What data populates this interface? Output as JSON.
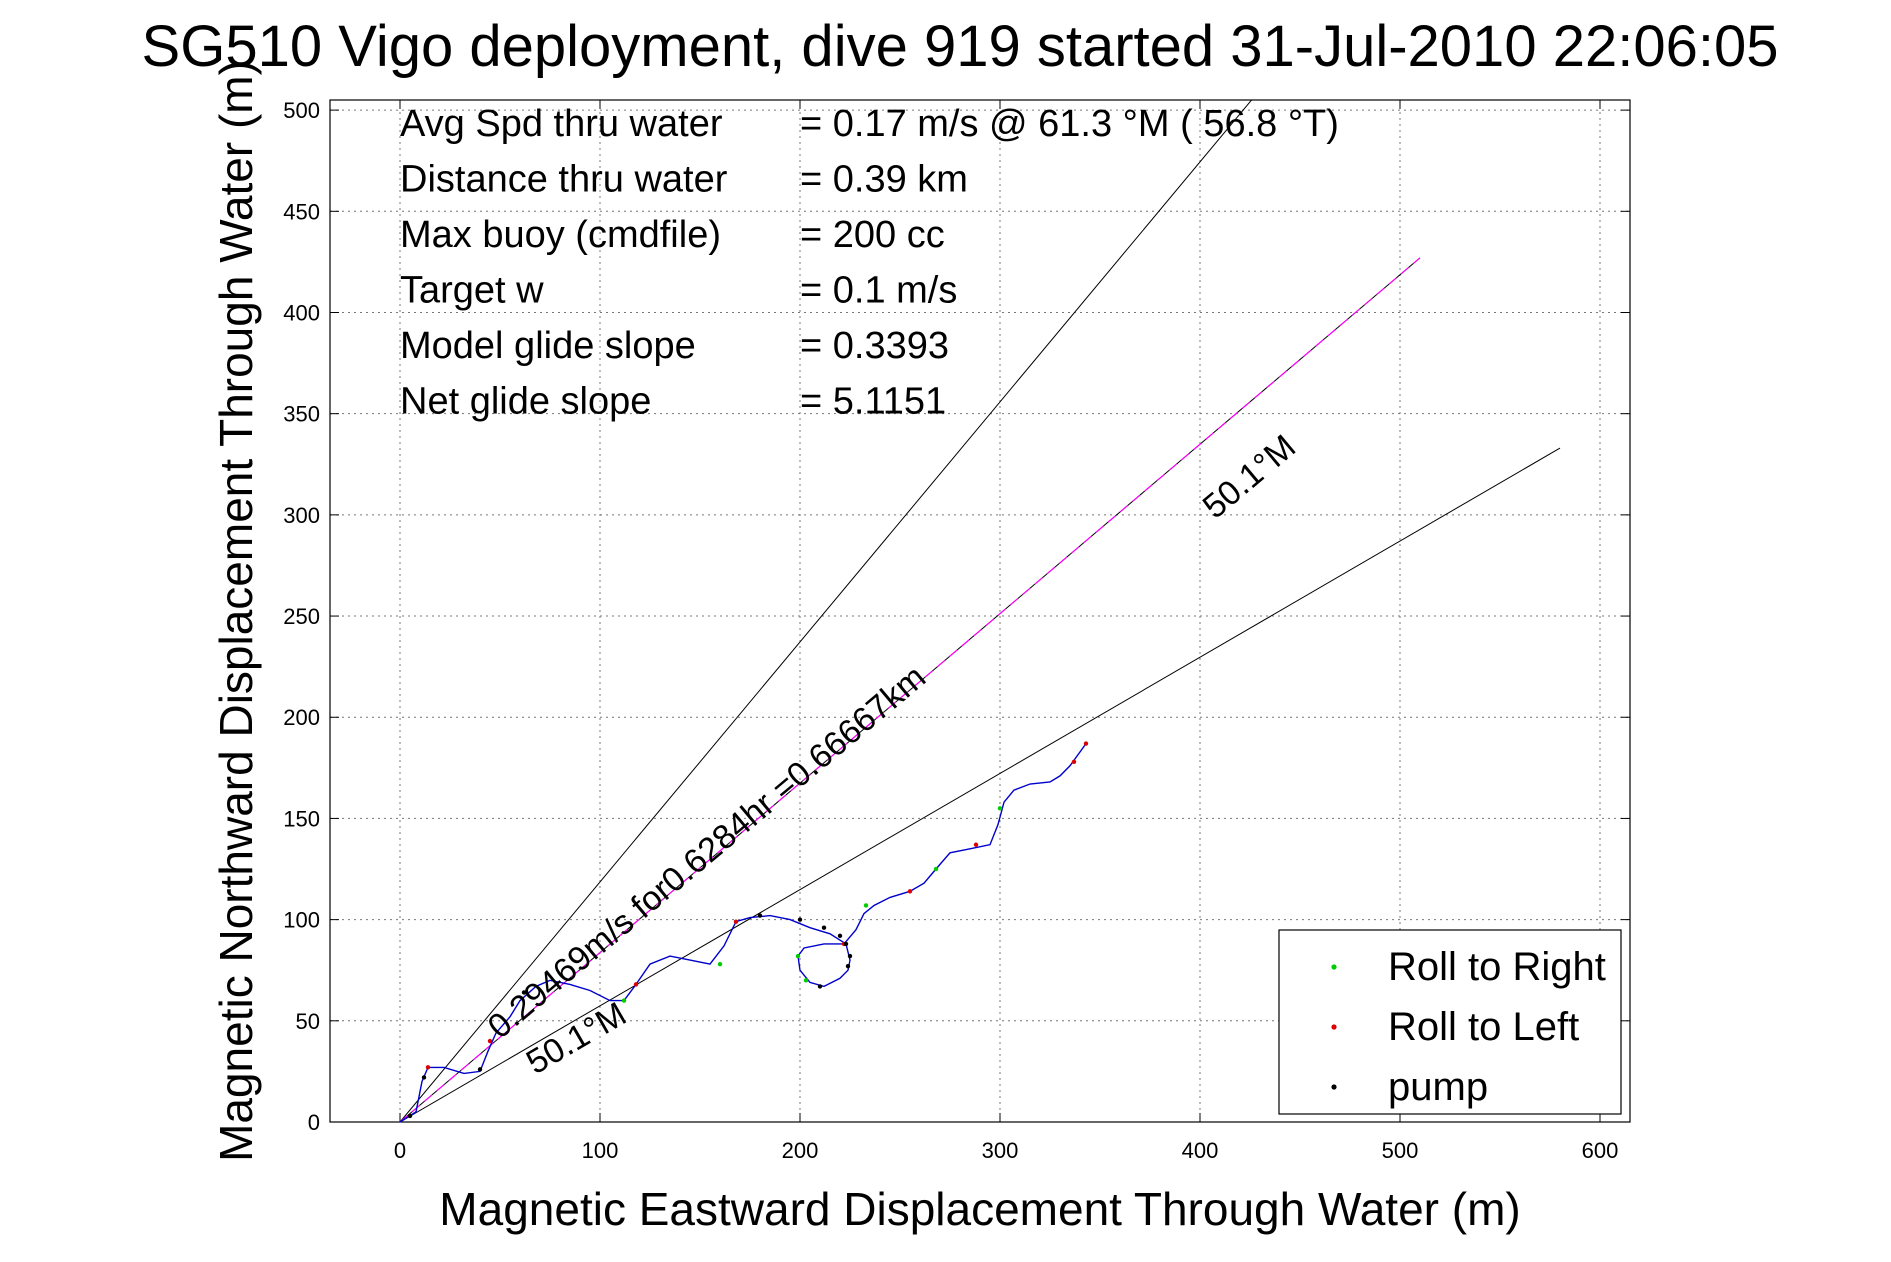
{
  "chart_data": {
    "type": "line",
    "title": "SG510 Vigo deployment, dive 919 started 31-Jul-2010 22:06:05",
    "xlabel": "Magnetic Eastward Displacement Through Water (m)",
    "ylabel": "Magnetic Northward Displacement Through Water (m)",
    "xlim": [
      -35,
      615
    ],
    "ylim": [
      0,
      505
    ],
    "xticks": [
      0,
      100,
      200,
      300,
      400,
      500,
      600
    ],
    "yticks": [
      0,
      50,
      100,
      150,
      200,
      250,
      300,
      350,
      400,
      450,
      500
    ],
    "grid": true,
    "info": [
      {
        "label": "Avg Spd thru water",
        "value": "=  0.17 m/s @  61.3 °M ( 56.8 °T)"
      },
      {
        "label": "Distance thru water",
        "value": "=  0.39 km"
      },
      {
        "label": "Max buoy (cmdfile)",
        "value": "= 200 cc"
      },
      {
        "label": "Target w",
        "value": "= 0.1 m/s"
      },
      {
        "label": "Model glide slope",
        "value": "= 0.3393"
      },
      {
        "label": "Net glide slope",
        "value": "= 5.1151"
      }
    ],
    "annotations": {
      "upper_heading": "50.1°M",
      "lower_heading": "50.1°M",
      "along_line": "0.29469m/s for0.6284hr =0.66667km"
    },
    "ref_lines": [
      {
        "from": [
          0,
          0
        ],
        "to": [
          430,
          510
        ]
      },
      {
        "from": [
          0,
          0
        ],
        "to": [
          510,
          427
        ]
      },
      {
        "from": [
          0,
          0
        ],
        "to": [
          580,
          333
        ]
      }
    ],
    "track": {
      "x": [
        0,
        8,
        11,
        14,
        22,
        32,
        40,
        44,
        48,
        55,
        60,
        68,
        75,
        85,
        95,
        105,
        112,
        118,
        125,
        135,
        145,
        155,
        162,
        168,
        175,
        185,
        195,
        205,
        215,
        223,
        225,
        224,
        220,
        212,
        205,
        200,
        199,
        202,
        212,
        222,
        228,
        232,
        237,
        245,
        255,
        262,
        268,
        275,
        285,
        295,
        299,
        302,
        307,
        315,
        325,
        330,
        335,
        343
      ],
      "y": [
        0,
        5,
        20,
        27,
        27,
        24,
        25,
        35,
        44,
        52,
        60,
        67,
        70,
        68,
        65,
        60,
        60,
        68,
        78,
        82,
        80,
        78,
        87,
        99,
        101,
        102,
        100,
        96,
        93,
        88,
        80,
        75,
        71,
        67,
        69,
        75,
        82,
        86,
        88,
        88,
        95,
        103,
        107,
        111,
        114,
        118,
        125,
        133,
        135,
        137,
        147,
        158,
        164,
        167,
        168,
        171,
        176,
        187
      ],
      "color": "#0000cc"
    },
    "series": [
      {
        "name": "Roll to Right",
        "color": "#00cc00",
        "x": [
          112,
          160,
          199,
          203,
          233,
          268,
          300
        ],
        "y": [
          60,
          78,
          82,
          70,
          107,
          125,
          155
        ]
      },
      {
        "name": "Roll to Left",
        "color": "#dd0000",
        "x": [
          14,
          45,
          118,
          168,
          222,
          255,
          288,
          337,
          343
        ],
        "y": [
          27,
          40,
          68,
          99,
          88,
          114,
          137,
          178,
          187
        ]
      },
      {
        "name": "pump",
        "color": "#000000",
        "x": [
          5,
          12,
          40,
          62,
          200,
          212,
          220,
          223,
          225,
          224,
          180,
          210
        ],
        "y": [
          3,
          22,
          26,
          64,
          100,
          96,
          92,
          88,
          82,
          77,
          102,
          67
        ]
      }
    ],
    "legend_position": "bottom-right"
  }
}
